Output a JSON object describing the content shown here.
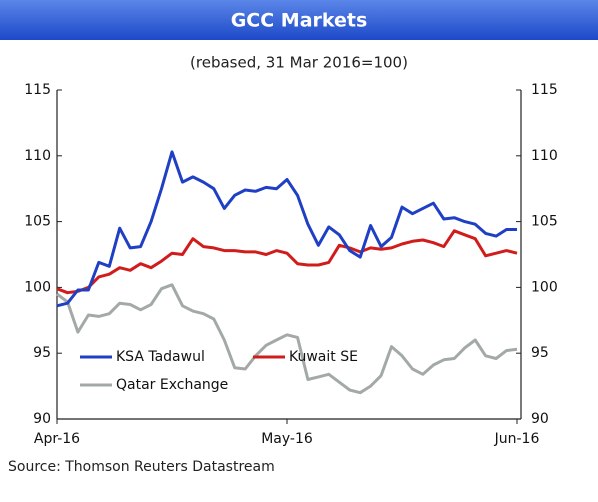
{
  "chart_data": {
    "type": "line",
    "title": "GCC Markets",
    "subtitle": "(rebased, 31 Mar  2016=100)",
    "source": "Source: Thomson Reuters Datastream",
    "categories": [
      "Apr-16",
      null,
      null,
      null,
      null,
      null,
      null,
      null,
      null,
      null,
      null,
      null,
      null,
      null,
      null,
      null,
      null,
      null,
      null,
      null,
      null,
      null,
      "May-16",
      null,
      null,
      null,
      null,
      null,
      null,
      null,
      null,
      null,
      null,
      null,
      null,
      null,
      null,
      null,
      null,
      null,
      null,
      null,
      null,
      null,
      "Jun-16"
    ],
    "series": [
      {
        "name": "KSA Tadawul",
        "color": "#1f3fc4",
        "values": [
          98.6,
          98.8,
          99.8,
          99.8,
          101.9,
          101.6,
          104.5,
          103.0,
          103.1,
          105.0,
          107.5,
          110.3,
          108.0,
          108.4,
          108.0,
          107.5,
          106.0,
          107.0,
          107.4,
          107.3,
          107.6,
          107.5,
          108.2,
          107.0,
          104.8,
          103.2,
          104.6,
          104.0,
          102.8,
          102.3,
          104.7,
          103.1,
          103.8,
          106.1,
          105.6,
          106.0,
          106.4,
          105.2,
          105.3,
          105.0,
          104.8,
          104.1,
          103.9,
          104.4,
          104.4
        ]
      },
      {
        "name": "Kuwait SE",
        "color": "#d11c1c",
        "values": [
          99.9,
          99.6,
          99.7,
          100.0,
          100.8,
          101.0,
          101.5,
          101.3,
          101.8,
          101.5,
          102.0,
          102.6,
          102.5,
          103.7,
          103.1,
          103.0,
          102.8,
          102.8,
          102.7,
          102.7,
          102.5,
          102.8,
          102.6,
          101.8,
          101.7,
          101.7,
          101.9,
          103.2,
          103.0,
          102.7,
          103.0,
          102.9,
          103.0,
          103.3,
          103.5,
          103.6,
          103.4,
          103.1,
          104.3,
          104.0,
          103.7,
          102.4,
          102.6,
          102.8,
          102.6
        ]
      },
      {
        "name": "Qatar Exchange",
        "color": "#a3aaa6",
        "values": [
          99.5,
          98.9,
          96.6,
          97.9,
          97.8,
          98.0,
          98.8,
          98.7,
          98.3,
          98.7,
          99.9,
          100.2,
          98.6,
          98.2,
          98.0,
          97.6,
          96.0,
          93.9,
          93.8,
          94.8,
          95.6,
          96.0,
          96.4,
          96.2,
          93.0,
          93.2,
          93.4,
          92.8,
          92.2,
          92.0,
          92.5,
          93.3,
          95.5,
          94.8,
          93.8,
          93.4,
          94.1,
          94.5,
          94.6,
          95.4,
          96.0,
          94.8,
          94.6,
          95.2,
          95.3
        ]
      }
    ],
    "ylim": [
      90,
      115
    ],
    "yticks": [
      90,
      95,
      100,
      105,
      110,
      115
    ],
    "y2lim": [
      90,
      115
    ],
    "y2ticks": [
      90,
      95,
      100,
      105,
      110,
      115
    ],
    "legend": "lower left",
    "grid": false
  }
}
